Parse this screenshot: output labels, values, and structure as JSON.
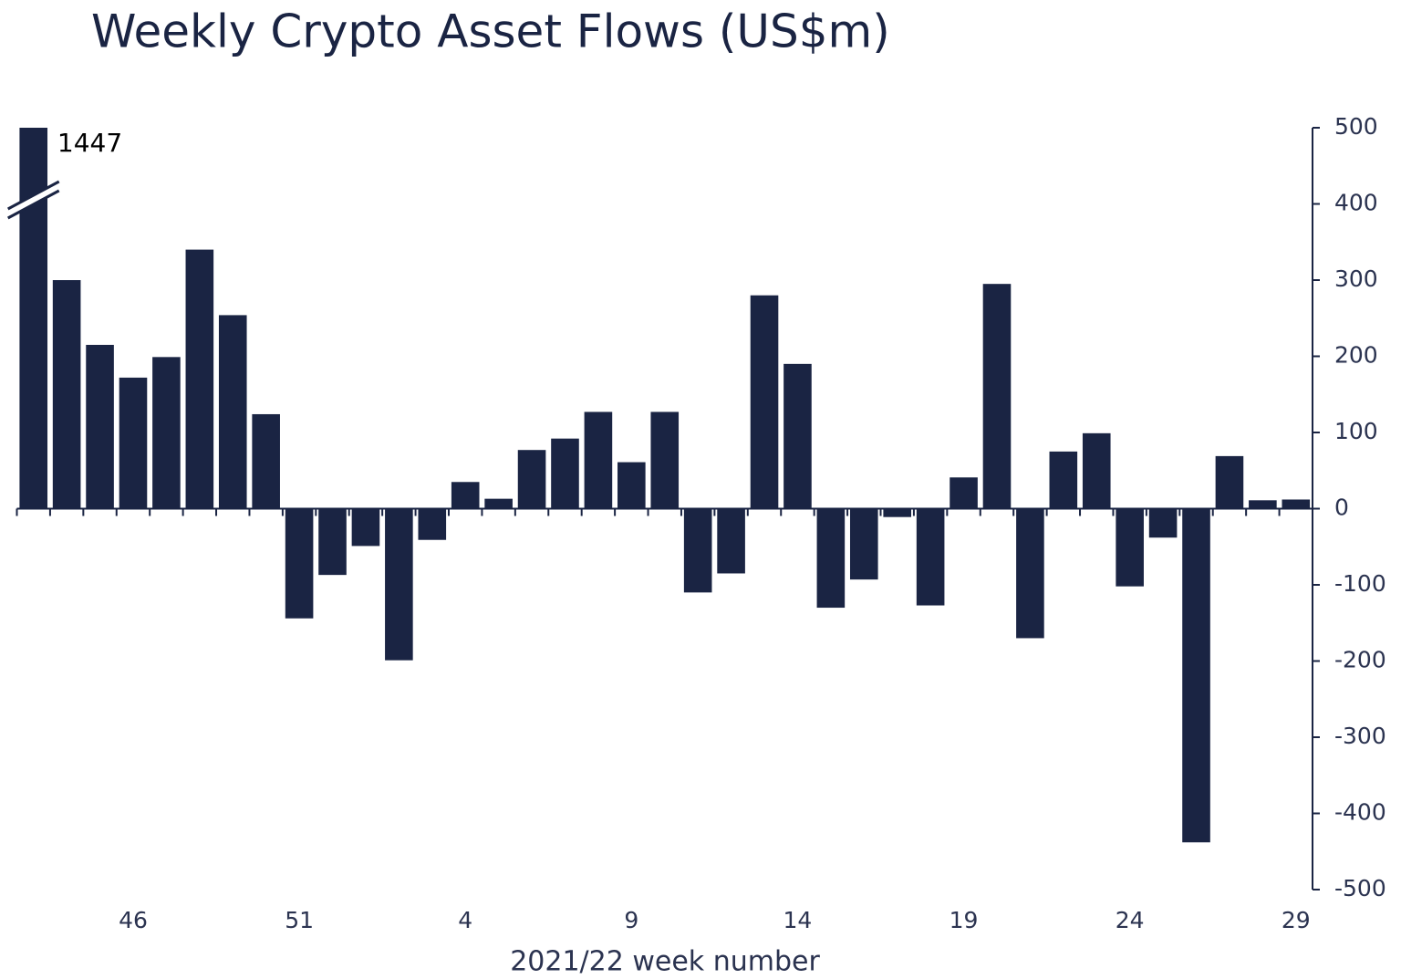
{
  "chart_data": {
    "type": "bar",
    "title": "Weekly Crypto Asset Flows (US$m)",
    "x_label": "2021/22 week number",
    "categories": [
      null,
      null,
      null,
      "46",
      null,
      null,
      null,
      null,
      "51",
      null,
      null,
      null,
      null,
      "4",
      null,
      null,
      null,
      null,
      "9",
      null,
      null,
      null,
      null,
      "14",
      null,
      null,
      null,
      null,
      "19",
      null,
      null,
      null,
      null,
      "24",
      null,
      null,
      null,
      null,
      "29"
    ],
    "values": [
      1447,
      300,
      215,
      172,
      199,
      340,
      254,
      124,
      -144,
      -87,
      -49,
      -199,
      -41,
      35,
      13,
      77,
      92,
      127,
      61,
      127,
      -110,
      -85,
      280,
      190,
      -130,
      -93,
      -11,
      -127,
      41,
      295,
      -170,
      75,
      99,
      -102,
      -38,
      -438,
      69,
      11,
      12
    ],
    "color": "#1a2443",
    "ylim": [
      -500,
      500
    ],
    "yticks": [
      -500,
      -400,
      -300,
      -200,
      -100,
      0,
      100,
      200,
      300,
      400,
      500
    ],
    "y_axis_side": "right"
  }
}
